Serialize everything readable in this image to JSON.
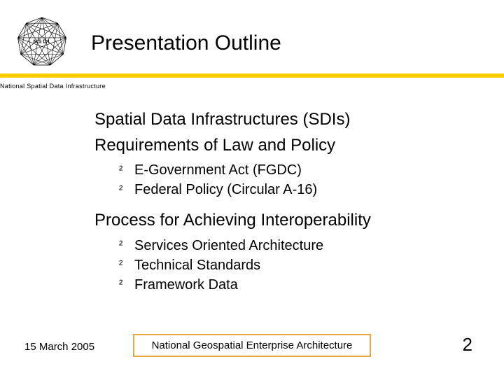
{
  "logo": {
    "label": "NSDI",
    "stroke_color": "#000000",
    "node_count": 9,
    "radius": 35
  },
  "title": "Presentation Outline",
  "subtitle": "National Spatial Data Infrastructure",
  "underline_color": "#ffcc00",
  "outline": {
    "sections": [
      {
        "heading": "Spatial Data Infrastructures (SDIs)",
        "items": []
      },
      {
        "heading": "Requirements of Law and Policy",
        "items": [
          "E-Government Act (FGDC)",
          "Federal Policy (Circular A-16)"
        ]
      },
      {
        "heading": "Process for Achieving Interoperability",
        "items": [
          "Services Oriented Architecture",
          "Technical Standards",
          "Framework Data"
        ]
      }
    ],
    "sub_bullet_glyph": "²"
  },
  "footer": {
    "date": "15 March 2005",
    "box_text": "National Geospatial Enterprise Architecture",
    "box_border_color": "#e8a83c",
    "page_number": "2"
  },
  "typography": {
    "title_fontsize": 30,
    "main_item_fontsize": 24,
    "sub_item_fontsize": 20,
    "footer_fontsize": 15,
    "page_number_fontsize": 26,
    "subtitle_fontsize": 9
  },
  "colors": {
    "background": "#ffffff",
    "text": "#000000"
  }
}
